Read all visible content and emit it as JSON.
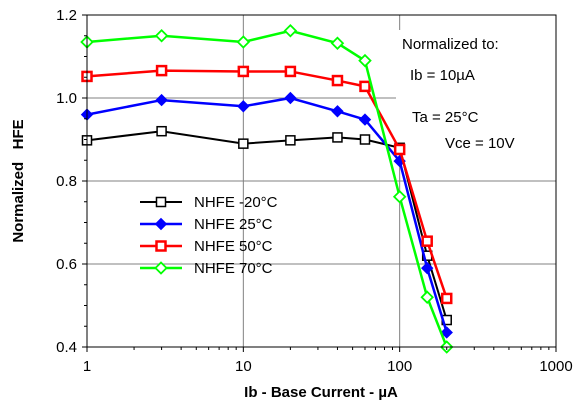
{
  "chart_data": {
    "type": "line",
    "xscale": "log",
    "xlim": [
      1,
      1000
    ],
    "ylim": [
      0.4,
      1.2
    ],
    "xticks": [
      1,
      10,
      100,
      1000
    ],
    "yticks": [
      0.4,
      0.6,
      0.8,
      1.0,
      1.2
    ],
    "xtick_labels": [
      "1",
      "10",
      "100",
      "1000"
    ],
    "ytick_labels": [
      "0.4",
      "0.6",
      "0.8",
      "1.0",
      "1.2"
    ],
    "xlabel": "Ib - Base Current - µA",
    "ylabel": "Normalized   HFE",
    "grid": true,
    "x": [
      1,
      3,
      10,
      20,
      40,
      60,
      100,
      150,
      200
    ],
    "series": [
      {
        "name": "NHFE -20°C",
        "color": "#000000",
        "marker": "square-open",
        "values": [
          0.898,
          0.92,
          0.89,
          0.898,
          0.905,
          0.9,
          0.88,
          0.62,
          0.465
        ]
      },
      {
        "name": "NHFE 25°C",
        "color": "#0000ff",
        "marker": "diamond",
        "values": [
          0.96,
          0.995,
          0.98,
          1.0,
          0.968,
          0.948,
          0.848,
          0.59,
          0.435
        ]
      },
      {
        "name": "NHFE 50°C",
        "color": "#ff0000",
        "marker": "square",
        "values": [
          1.052,
          1.066,
          1.064,
          1.064,
          1.042,
          1.028,
          0.876,
          0.655,
          0.517
        ]
      },
      {
        "name": "NHFE 70°C",
        "color": "#00ff00",
        "marker": "diamond-open",
        "values": [
          1.135,
          1.15,
          1.135,
          1.162,
          1.132,
          1.09,
          0.762,
          0.52,
          0.4
        ]
      }
    ],
    "legend_position": "center-left",
    "annotations": {
      "normalized_to": "Normalized to:",
      "ib_condition": "Ib = 10µA",
      "ta_condition": "Ta = 25°C",
      "vce_condition": "Vce = 10V"
    }
  }
}
